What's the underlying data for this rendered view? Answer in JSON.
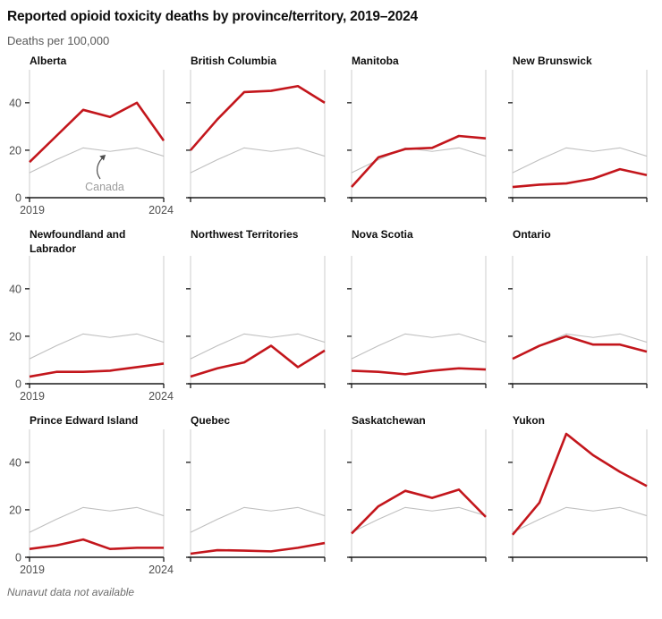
{
  "header": {
    "title": "Reported opioid toxicity deaths by province/territory, 2019–2024",
    "subtitle": "Deaths per 100,000"
  },
  "footer": {
    "note": "Nunavut data not available"
  },
  "colors": {
    "province_line": "#c3161c",
    "canada_line": "#bfbfbf",
    "axis_light": "#cccccc",
    "axis_dark": "#1a1a1a",
    "tick_label": "#4d4d4d",
    "annotation_text": "#9c9c9c",
    "annotation_arrow": "#4d4d4d"
  },
  "chart_data": {
    "type": "line",
    "small_multiples": true,
    "x": [
      2019,
      2020,
      2021,
      2022,
      2023,
      2024
    ],
    "x_tick_labels": [
      "2019",
      "2024"
    ],
    "ylim": [
      0,
      52
    ],
    "yticks": [
      0,
      20,
      40
    ],
    "grid": false,
    "legend": "none",
    "reference_series": {
      "name": "Canada",
      "values": [
        10.5,
        16,
        21,
        19.5,
        21,
        17.5
      ]
    },
    "annotation": {
      "text": "Canada",
      "panel": "Alberta"
    },
    "panels": [
      {
        "title": "Alberta",
        "values": [
          15,
          26,
          37,
          34,
          40,
          24
        ]
      },
      {
        "title": "British Columbia",
        "values": [
          20,
          33,
          44.5,
          45,
          47,
          40
        ]
      },
      {
        "title": "Manitoba",
        "values": [
          4.5,
          17,
          20.5,
          21,
          26,
          25
        ]
      },
      {
        "title": "New Brunswick",
        "values": [
          4.5,
          5.5,
          6,
          8,
          12,
          9.5
        ]
      },
      {
        "title": "Newfoundland and Labrador",
        "values": [
          3,
          5,
          5,
          5.5,
          7,
          8.5
        ]
      },
      {
        "title": "Northwest Territories",
        "values": [
          3,
          6.5,
          9,
          16,
          7,
          14
        ]
      },
      {
        "title": "Nova Scotia",
        "values": [
          5.5,
          5,
          4,
          5.5,
          6.5,
          6
        ]
      },
      {
        "title": "Ontario",
        "values": [
          10.5,
          16,
          20,
          16.5,
          16.5,
          13.5
        ]
      },
      {
        "title": "Prince Edward Island",
        "values": [
          3.5,
          5,
          7.5,
          3.5,
          4,
          4
        ]
      },
      {
        "title": "Quebec",
        "values": [
          1.5,
          3,
          2.8,
          2.5,
          4,
          6
        ]
      },
      {
        "title": "Saskatchewan",
        "values": [
          10,
          21.5,
          28,
          25,
          28.5,
          17
        ]
      },
      {
        "title": "Yukon",
        "values": [
          9.5,
          23,
          52,
          43,
          36,
          30
        ]
      }
    ]
  }
}
